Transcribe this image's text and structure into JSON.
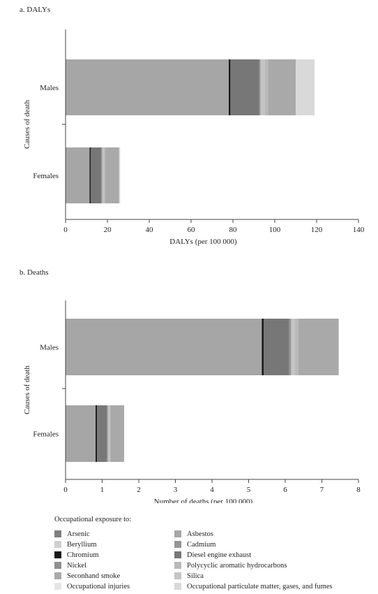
{
  "colors": {
    "Arsenic": "#7f7f7f",
    "Beryllium": "#cfcfcf",
    "Chromium": "#1a1a1a",
    "Nickel": "#8f8f8f",
    "Seconhand smoke": "#a9a9a9",
    "Occupational injuries": "#e6e6e6",
    "Asbestos": "#a6a6a6",
    "Cadmium": "#959595",
    "Diesel engine exhaust": "#777777",
    "Polycyclic aromatic hydrocarbons": "#b9b9b9",
    "Silica": "#c4c4c4",
    "Occupational particulate matter, gases, and fumes": "#d9d9d9"
  },
  "legend": {
    "heading": "Occupational exposure to:",
    "left": [
      "Arsenic",
      "Beryllium",
      "Chromium",
      "Nickel",
      "Seconhand smoke",
      "Occupational injuries"
    ],
    "right": [
      "Asbestos",
      "Cadmium",
      "Diesel engine exhaust",
      "Polycyclic aromatic hydrocarbons",
      "Silica",
      "Occupational particulate matter, gases, and fumes"
    ]
  },
  "chart_data": [
    {
      "type": "bar",
      "orientation": "horizontal",
      "stacked": true,
      "title": "a. DALYs",
      "xlabel": "DALYs (per 100 000)",
      "ylabel": "Causes of death",
      "categories": [
        "Males",
        "Females"
      ],
      "xlim": [
        0,
        140
      ],
      "xticks": [
        0,
        20,
        40,
        60,
        80,
        100,
        120,
        140
      ],
      "grid": false,
      "series": [
        {
          "name": "Asbestos",
          "values": [
            78,
            11.5
          ]
        },
        {
          "name": "Chromium",
          "values": [
            0.8,
            0.6
          ]
        },
        {
          "name": "Diesel engine exhaust",
          "values": [
            13.7,
            5.0
          ]
        },
        {
          "name": "Cadmium",
          "values": [
            0.7,
            0.4
          ]
        },
        {
          "name": "Silica",
          "values": [
            2.0,
            1.0
          ]
        },
        {
          "name": "Polycyclic aromatic hydrocarbons",
          "values": [
            1.6,
            0.5
          ]
        },
        {
          "name": "Seconhand smoke",
          "values": [
            13.2,
            6.6
          ]
        },
        {
          "name": "Occupational particulate matter, gases, and fumes",
          "values": [
            9.0,
            0.5
          ]
        }
      ]
    },
    {
      "type": "bar",
      "orientation": "horizontal",
      "stacked": true,
      "title": "b. Deaths",
      "xlabel": "Number of deaths (per 100 000)",
      "ylabel": "Causes of death",
      "categories": [
        "Males",
        "Females"
      ],
      "xlim": [
        0,
        8
      ],
      "xticks": [
        0,
        1,
        2,
        3,
        4,
        5,
        6,
        7,
        8
      ],
      "grid": false,
      "series": [
        {
          "name": "Asbestos",
          "values": [
            5.36,
            0.82
          ]
        },
        {
          "name": "Chromium",
          "values": [
            0.05,
            0.04
          ]
        },
        {
          "name": "Diesel engine exhaust",
          "values": [
            0.7,
            0.27
          ]
        },
        {
          "name": "Cadmium",
          "values": [
            0.05,
            0.03
          ]
        },
        {
          "name": "Silica",
          "values": [
            0.1,
            0.05
          ]
        },
        {
          "name": "Polycyclic aromatic hydrocarbons",
          "values": [
            0.1,
            0.02
          ]
        },
        {
          "name": "Seconhand smoke",
          "values": [
            1.1,
            0.37
          ]
        }
      ]
    }
  ]
}
